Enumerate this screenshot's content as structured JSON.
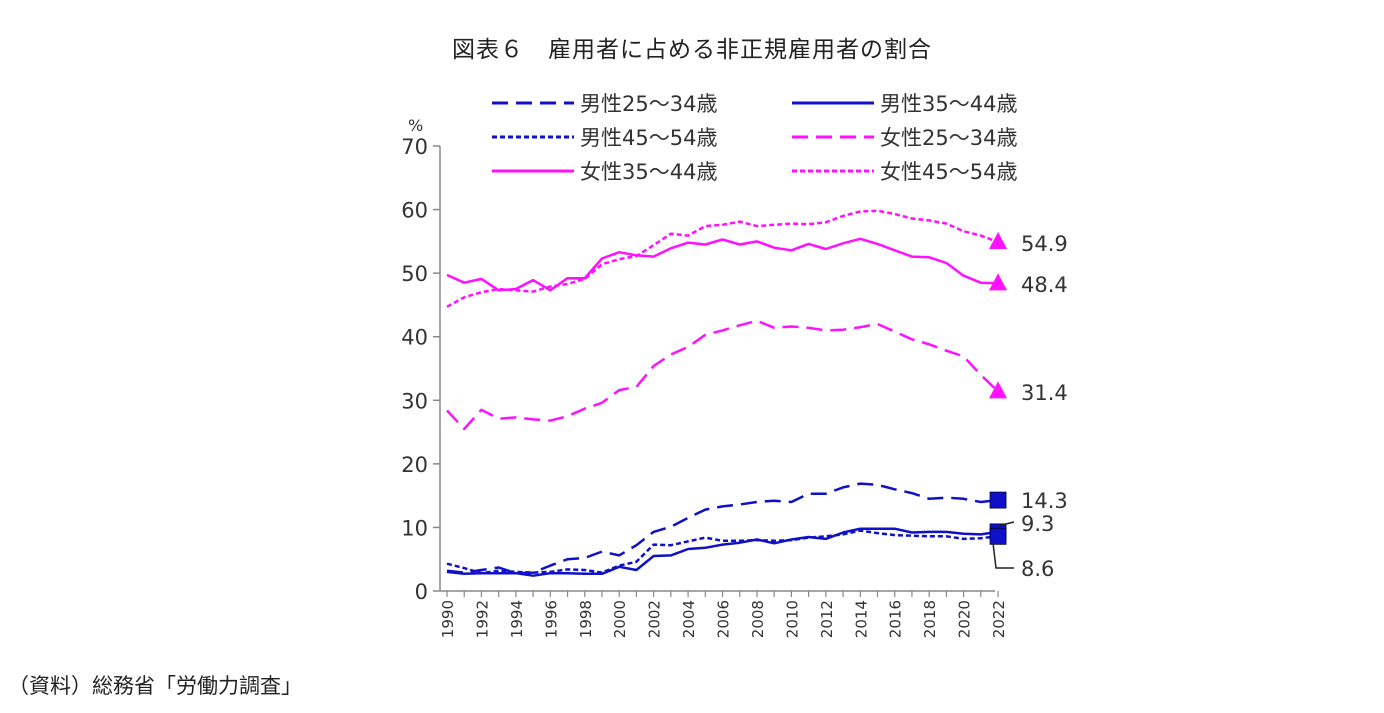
{
  "title": "図表６　雇用者に占める非正規雇用者の割合",
  "source": "（資料）総務省「労働力調査」",
  "chart_data": {
    "type": "line",
    "y_unit": "%",
    "ylim": [
      0,
      70
    ],
    "y_ticks": [
      0,
      10,
      20,
      30,
      40,
      50,
      60,
      70
    ],
    "x": [
      1990,
      1991,
      1992,
      1993,
      1994,
      1995,
      1996,
      1997,
      1998,
      1999,
      2000,
      2001,
      2002,
      2003,
      2004,
      2005,
      2006,
      2007,
      2008,
      2009,
      2010,
      2011,
      2012,
      2013,
      2014,
      2015,
      2016,
      2017,
      2018,
      2019,
      2020,
      2021,
      2022
    ],
    "x_tick_labels": [
      "1990",
      "1992",
      "1994",
      "1996",
      "1998",
      "2000",
      "2002",
      "2004",
      "2006",
      "2008",
      "2010",
      "2012",
      "2014",
      "2016",
      "2018",
      "2020",
      "2022"
    ],
    "grid": false,
    "legend_position": "top",
    "series": [
      {
        "name": "男性25～34歳",
        "color": "#1010c8",
        "dash": "long-dash",
        "values": [
          3.2,
          2.9,
          3.3,
          3.7,
          2.8,
          2.9,
          4.0,
          5.0,
          5.2,
          6.2,
          5.6,
          7.2,
          9.3,
          10.1,
          11.5,
          12.8,
          13.3,
          13.6,
          14.0,
          14.2,
          14.0,
          15.3,
          15.3,
          16.3,
          16.9,
          16.7,
          16.0,
          15.4,
          14.5,
          14.7,
          14.5,
          14.0,
          14.3
        ],
        "end_label": "14.3",
        "end_marker": "square"
      },
      {
        "name": "男性35～44歳",
        "color": "#1010c8",
        "dash": "solid",
        "values": [
          3.0,
          2.7,
          2.8,
          2.8,
          2.8,
          2.4,
          2.8,
          2.8,
          2.7,
          2.7,
          3.8,
          3.3,
          5.5,
          5.6,
          6.6,
          6.8,
          7.3,
          7.6,
          8.1,
          7.5,
          8.1,
          8.5,
          8.2,
          9.2,
          9.8,
          9.8,
          9.8,
          9.2,
          9.3,
          9.3,
          9.0,
          8.9,
          9.3
        ],
        "end_label": "9.3",
        "end_marker": "square"
      },
      {
        "name": "男性45～54歳",
        "color": "#1010c8",
        "dash": "dotted",
        "values": [
          4.3,
          3.6,
          2.8,
          3.2,
          3.0,
          2.9,
          3.0,
          3.4,
          3.3,
          2.9,
          4.0,
          4.6,
          7.3,
          7.2,
          7.8,
          8.4,
          7.9,
          7.9,
          8.0,
          7.9,
          8.0,
          8.4,
          8.6,
          8.9,
          9.5,
          9.1,
          8.8,
          8.7,
          8.6,
          8.6,
          8.2,
          8.3,
          8.6
        ],
        "end_label": "8.6",
        "end_marker": "square"
      },
      {
        "name": "女性25～34歳",
        "color": "#ff10ff",
        "dash": "long-dash",
        "values": [
          28.4,
          25.5,
          28.5,
          27.1,
          27.3,
          27.0,
          26.8,
          27.5,
          28.7,
          29.6,
          31.6,
          32.1,
          35.4,
          37.2,
          38.4,
          40.3,
          41.0,
          41.8,
          42.5,
          41.4,
          41.6,
          41.4,
          41.0,
          41.1,
          41.5,
          42.0,
          40.8,
          39.6,
          38.8,
          37.8,
          36.9,
          34.0,
          31.4
        ],
        "end_label": "31.4",
        "end_marker": "triangle"
      },
      {
        "name": "女性35～44歳",
        "color": "#ff10ff",
        "dash": "solid",
        "values": [
          49.7,
          48.5,
          49.1,
          47.3,
          47.5,
          48.9,
          47.3,
          49.2,
          49.2,
          52.3,
          53.3,
          52.8,
          52.6,
          53.9,
          54.8,
          54.5,
          55.3,
          54.5,
          55.0,
          54.0,
          53.6,
          54.6,
          53.8,
          54.7,
          55.4,
          54.6,
          53.6,
          52.6,
          52.5,
          51.6,
          49.6,
          48.5,
          48.4
        ],
        "end_label": "48.4",
        "end_marker": "triangle"
      },
      {
        "name": "女性45～54歳",
        "color": "#ff10ff",
        "dash": "dotted",
        "values": [
          44.7,
          46.2,
          47.0,
          47.5,
          47.3,
          47.1,
          47.9,
          48.3,
          49.1,
          51.4,
          52.2,
          52.7,
          54.4,
          56.2,
          55.9,
          57.4,
          57.6,
          58.1,
          57.4,
          57.6,
          57.8,
          57.7,
          58.0,
          59.0,
          59.7,
          59.8,
          59.3,
          58.6,
          58.3,
          57.8,
          56.6,
          55.9,
          54.9
        ],
        "end_label": "54.9",
        "end_marker": "triangle"
      }
    ]
  }
}
